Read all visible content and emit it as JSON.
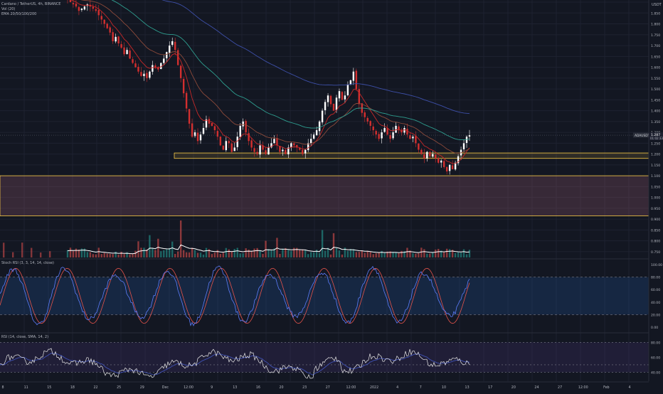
{
  "header": {
    "symbol_line": "Cardano / TetherUS, 4h, BINANCE",
    "vol_line": "Vol (20)",
    "ema_line": "EMA 20/50/100/200"
  },
  "price_axis": {
    "unit": "USDT",
    "ticks": [
      "1.900",
      "1.850",
      "1.800",
      "1.750",
      "1.700",
      "1.650",
      "1.600",
      "1.550",
      "1.500",
      "1.450",
      "1.400",
      "1.350",
      "1.300",
      "1.250",
      "1.200",
      "1.150",
      "1.100",
      "1.050",
      "1.000",
      "0.950",
      "0.900",
      "0.850",
      "0.800",
      "0.750"
    ],
    "last_price_tag": "ADAUSDT",
    "last_price": "1.287",
    "countdown": "01:02:33"
  },
  "stoch_panel": {
    "title": "Stoch RSI (3, 3, 14, 14, close)",
    "ticks": [
      "100.00",
      "80.00",
      "60.00",
      "40.00",
      "20.00",
      "0.00"
    ]
  },
  "rsi_panel": {
    "title": "RSI (14, close, SMA, 14, 2)",
    "ticks": [
      "80.00",
      "60.00",
      "40.00"
    ]
  },
  "time_axis": {
    "labels": [
      "8",
      "11",
      "15",
      "18",
      "22",
      "25",
      "29",
      "Dec",
      "12:00",
      "9",
      "13",
      "16",
      "20",
      "23",
      "27",
      "12:00",
      "2022",
      "4",
      "7",
      "10",
      "13",
      "17",
      "20",
      "24",
      "27",
      "12:00",
      "Feb",
      "4"
    ]
  },
  "colors": {
    "background": "#131722",
    "up": "#ffffff",
    "down": "#d32f2f",
    "ema20": "#c62828",
    "ema50": "#8d4a3a",
    "ema100": "#2e9e8f",
    "ema200": "#3d4fa8",
    "zone_border": "#f6c945",
    "stoch_k": "#5c7cfa",
    "stoch_d": "#e5534b",
    "rsi_line": "#e8e8e8",
    "rsi_ma": "#3f51b5"
  },
  "chart_data": {
    "type": "candlestick",
    "pair": "ADA/USDT",
    "timeframe": "4h",
    "ylim": [
      0.73,
      1.91
    ],
    "zones": [
      {
        "from": 1.18,
        "to": 1.205
      },
      {
        "from": 0.915,
        "to": 1.1
      }
    ],
    "closes": [
      1.915,
      1.9,
      1.89,
      1.88,
      1.86,
      1.87,
      1.88,
      1.89,
      1.88,
      1.87,
      1.86,
      1.84,
      1.82,
      1.8,
      1.78,
      1.76,
      1.72,
      1.74,
      1.71,
      1.69,
      1.66,
      1.68,
      1.64,
      1.62,
      1.6,
      1.58,
      1.56,
      1.57,
      1.55,
      1.58,
      1.61,
      1.6,
      1.59,
      1.62,
      1.64,
      1.67,
      1.7,
      1.72,
      1.68,
      1.61,
      1.55,
      1.48,
      1.41,
      1.34,
      1.28,
      1.3,
      1.26,
      1.29,
      1.32,
      1.36,
      1.34,
      1.33,
      1.31,
      1.28,
      1.24,
      1.22,
      1.26,
      1.25,
      1.21,
      1.23,
      1.28,
      1.33,
      1.35,
      1.3,
      1.26,
      1.23,
      1.21,
      1.2,
      1.24,
      1.22,
      1.2,
      1.23,
      1.25,
      1.27,
      1.24,
      1.21,
      1.22,
      1.2,
      1.23,
      1.25,
      1.24,
      1.23,
      1.22,
      1.2,
      1.22,
      1.25,
      1.27,
      1.29,
      1.31,
      1.35,
      1.4,
      1.44,
      1.47,
      1.43,
      1.4,
      1.46,
      1.49,
      1.45,
      1.47,
      1.52,
      1.54,
      1.58,
      1.5,
      1.43,
      1.39,
      1.37,
      1.35,
      1.33,
      1.31,
      1.29,
      1.27,
      1.3,
      1.32,
      1.29,
      1.27,
      1.3,
      1.33,
      1.31,
      1.3,
      1.32,
      1.29,
      1.27,
      1.28,
      1.25,
      1.22,
      1.2,
      1.18,
      1.21,
      1.19,
      1.2,
      1.18,
      1.16,
      1.17,
      1.14,
      1.12,
      1.15,
      1.13,
      1.16,
      1.19,
      1.22,
      1.25,
      1.28,
      1.287
    ]
  }
}
